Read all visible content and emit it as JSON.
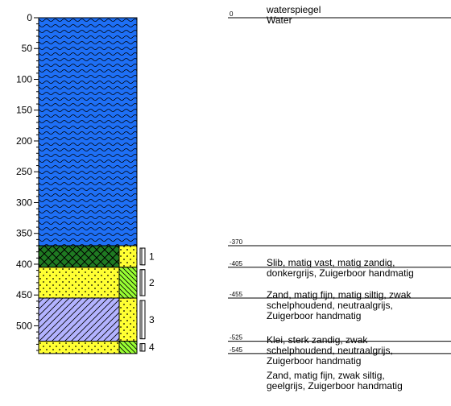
{
  "axis": {
    "ticks": [
      "0",
      "50",
      "100",
      "150",
      "200",
      "250",
      "300",
      "350",
      "400",
      "450",
      "500"
    ]
  },
  "layers": [
    {
      "top": 0,
      "bottom": 370,
      "lithology": "water",
      "fill": "#1e6ff5"
    },
    {
      "top": 370,
      "bottom": 405,
      "lithology": "slib",
      "fill": "#1f7a22"
    },
    {
      "top": 405,
      "bottom": 455,
      "lithology": "zand",
      "fill": "#ffff33"
    },
    {
      "top": 455,
      "bottom": 525,
      "lithology": "klei",
      "fill": "#b3b3ff"
    },
    {
      "top": 525,
      "bottom": 545,
      "lithology": "zand",
      "fill": "#ffff33"
    }
  ],
  "side_column": [
    {
      "top": 370,
      "bottom": 405,
      "pattern": "dots",
      "fill": "#ffff33"
    },
    {
      "top": 405,
      "bottom": 455,
      "pattern": "green-hatch",
      "fill": "#99ff33"
    },
    {
      "top": 455,
      "bottom": 525,
      "pattern": "dots",
      "fill": "#ffff33"
    },
    {
      "top": 525,
      "bottom": 545,
      "pattern": "green-hatch",
      "fill": "#99ff33"
    }
  ],
  "samples": [
    {
      "label": "1",
      "top": 370,
      "bottom": 405
    },
    {
      "label": "2",
      "top": 405,
      "bottom": 455
    },
    {
      "label": "3",
      "top": 455,
      "bottom": 525
    },
    {
      "label": "4",
      "top": 525,
      "bottom": 545
    }
  ],
  "descriptions": [
    {
      "depth_label": "0",
      "line_depth": 0,
      "lines": [
        "waterspiegel",
        "Water"
      ],
      "underline_first": true
    },
    {
      "depth_label": "-370",
      "line_depth": 370,
      "lines": []
    },
    {
      "depth_label": "-405",
      "line_depth": 405,
      "lines": [
        "Slib, matig vast, matig zandig,",
        "donkergrijs, Zuigerboor handmatig"
      ]
    },
    {
      "depth_label": "-455",
      "line_depth": 455,
      "lines": [
        "Zand, matig fijn, matig siltig, zwak",
        "schelphoudend, neutraalgrijs,",
        "Zuigerboor handmatig"
      ]
    },
    {
      "depth_label": "-525",
      "line_depth": 525,
      "lines": [
        "Klei, sterk zandig, zwak",
        "schelphoudend, neutraalgrijs,",
        "Zuigerboor handmatig"
      ]
    },
    {
      "depth_label": "-545",
      "line_depth": 545,
      "lines": [
        "Zand, matig fijn, zwak siltig,",
        "geelgrijs, Zuigerboor handmatig"
      ]
    }
  ]
}
